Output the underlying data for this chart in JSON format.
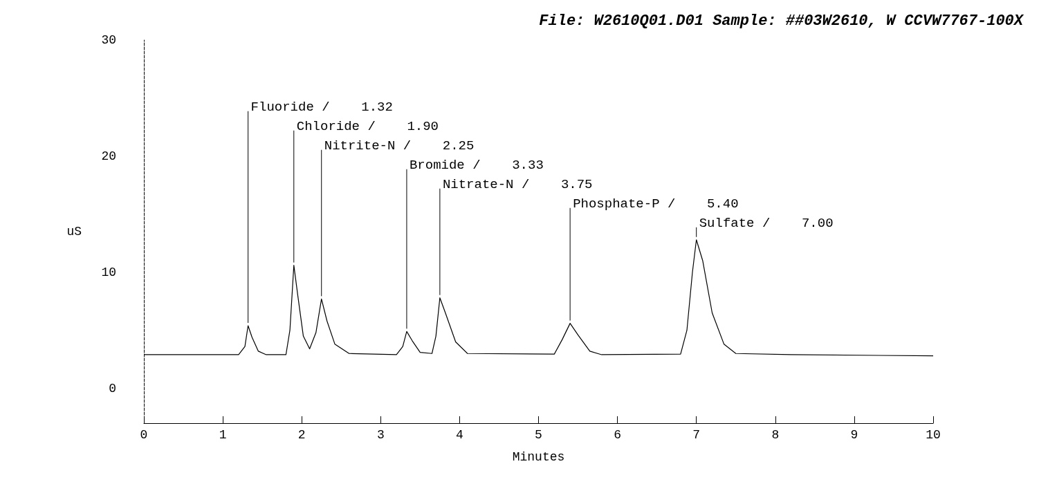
{
  "chart_data": {
    "type": "line",
    "title": "File: W2610Q01.D01 Sample: ##03W2610, W CCVW7767-100X",
    "xlabel": "Minutes",
    "ylabel": "uS",
    "xlim": [
      0,
      10
    ],
    "xticks": [
      0,
      1,
      2,
      3,
      4,
      5,
      6,
      7,
      8,
      9,
      10
    ],
    "ylim": [
      -3,
      30
    ],
    "yticks": [
      0,
      10,
      20,
      30
    ],
    "grid": false,
    "marker": "none",
    "line_style": "solid",
    "series": [
      {
        "color": "#000000",
        "x": [
          0,
          1.2,
          1.28,
          1.32,
          1.37,
          1.45,
          1.55,
          1.8,
          1.85,
          1.9,
          1.95,
          2.02,
          2.1,
          2.18,
          2.25,
          2.32,
          2.42,
          2.6,
          3.2,
          3.28,
          3.33,
          3.4,
          3.5,
          3.65,
          3.7,
          3.75,
          3.82,
          3.95,
          4.1,
          5.2,
          5.3,
          5.4,
          5.5,
          5.65,
          5.8,
          6.8,
          6.88,
          6.95,
          7.0,
          7.08,
          7.2,
          7.35,
          7.5,
          8.2,
          10
        ],
        "values": [
          2.9,
          2.9,
          3.6,
          5.4,
          4.4,
          3.2,
          2.9,
          2.9,
          5,
          10.6,
          8,
          4.5,
          3.4,
          4.8,
          7.7,
          5.8,
          3.8,
          3.0,
          2.9,
          3.6,
          4.9,
          4.1,
          3.1,
          3.0,
          4.5,
          7.8,
          6.5,
          4.0,
          3.0,
          2.95,
          4.2,
          5.6,
          4.6,
          3.2,
          2.9,
          2.95,
          5,
          10,
          12.8,
          11,
          6.5,
          3.8,
          3.0,
          2.9,
          2.8
        ]
      }
    ],
    "annotations": [
      {
        "text": "Fluoride /    1.32",
        "x": 1.32,
        "y": 5.4
      },
      {
        "text": "Chloride /    1.90",
        "x": 1.9,
        "y": 10.6
      },
      {
        "text": "Nitrite-N /    2.25",
        "x": 2.25,
        "y": 7.7
      },
      {
        "text": "Bromide /    3.33",
        "x": 3.33,
        "y": 4.9
      },
      {
        "text": "Nitrate-N /    3.75",
        "x": 3.75,
        "y": 7.8
      },
      {
        "text": "Phosphate-P /    5.40",
        "x": 5.4,
        "y": 5.6
      },
      {
        "text": "Sulfate /    7.00",
        "x": 7.0,
        "y": 12.8
      }
    ]
  }
}
